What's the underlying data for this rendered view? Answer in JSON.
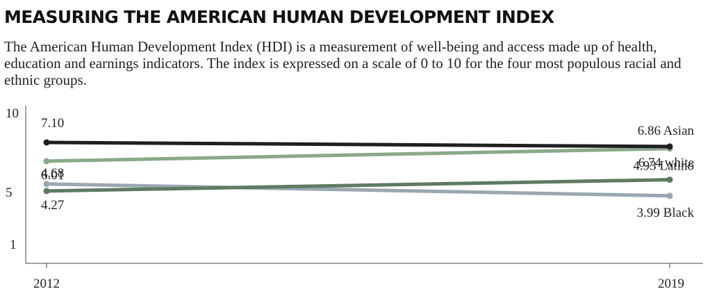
{
  "title": "MEASURING THE AMERICAN HUMAN DEVELOPMENT INDEX",
  "subtitle": "The American Human Development Index (HDI) is a measurement of well-being and access made up of health, education and earnings indicators. The index is expressed on a scale of 0 to 10 for the four most populous racial and ethnic groups.",
  "chart_data": {
    "type": "line",
    "title": "MEASURING THE AMERICAN HUMAN DEVELOPMENT INDEX",
    "subtitle": "The American Human Development Index (HDI) is a measurement of well-being and access made up of health, education and earnings indicators. The index is expressed on a scale of 0 to 10 for the four most populous racial and ethnic groups.",
    "xlabel": "",
    "ylabel": "",
    "x": [
      "2012",
      "2019"
    ],
    "y_ticks": [
      "10",
      "5",
      "1"
    ],
    "y_tick_values": [
      10,
      5,
      1
    ],
    "ylim": [
      0,
      10
    ],
    "grid": false,
    "legend": "none",
    "series": [
      {
        "name": "Asian",
        "values": [
          7.1,
          6.86
        ],
        "start_label": "7.10",
        "end_label": "6.86 Asian",
        "color": "#1f1f1f"
      },
      {
        "name": "white",
        "values": [
          6.01,
          6.74
        ],
        "start_label": "6.01",
        "end_label": "6.74 white",
        "color": "#8aa88a"
      },
      {
        "name": "Black",
        "values": [
          4.68,
          3.99
        ],
        "start_label": "4.68",
        "end_label": "3.99 Black",
        "color": "#9aa7b2"
      },
      {
        "name": "Latino",
        "values": [
          4.27,
          4.93
        ],
        "start_label": "4.27",
        "end_label": "4.93 Latino",
        "color": "#5e7b62"
      }
    ]
  }
}
